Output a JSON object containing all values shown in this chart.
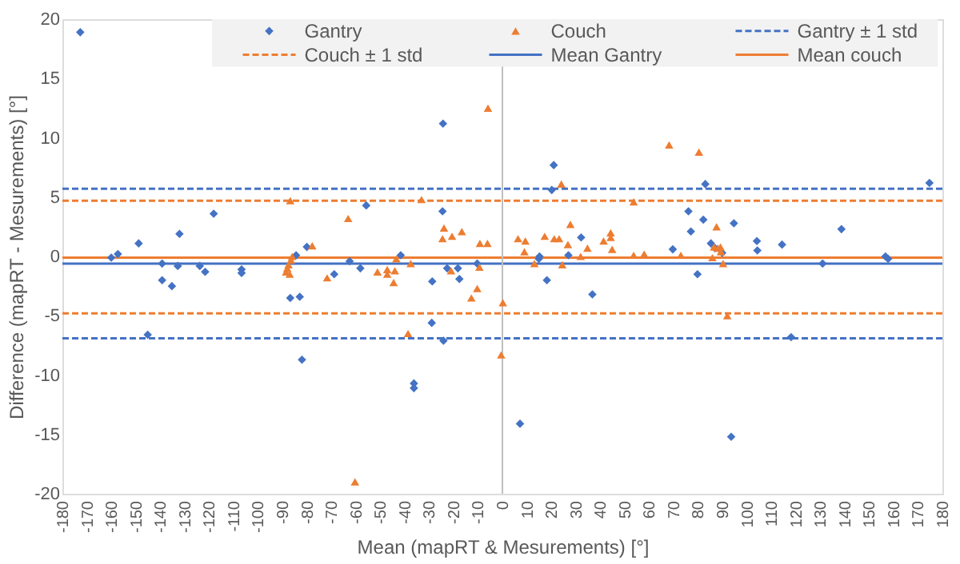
{
  "chart_data": {
    "type": "scatter",
    "xlabel": "Mean (mapRT & Mesurements) [°]",
    "ylabel": "Difference (mapRT - Mesurements) [°]",
    "xlim": [
      -180,
      180
    ],
    "xticks": [
      -180,
      -170,
      -160,
      -150,
      -140,
      -130,
      -120,
      -110,
      -100,
      -90,
      -80,
      -70,
      -60,
      -50,
      -40,
      -30,
      -20,
      -10,
      0,
      10,
      20,
      30,
      40,
      50,
      60,
      70,
      80,
      90,
      100,
      110,
      120,
      130,
      140,
      150,
      160,
      170,
      180
    ],
    "ylim": [
      -20,
      20
    ],
    "yticks": [
      -20,
      -15,
      -10,
      -5,
      0,
      5,
      10,
      15,
      20
    ],
    "grid": false,
    "legend": "top",
    "series": [
      {
        "name": "Gantry",
        "color": "#4472c4",
        "marker": "diamond",
        "x": [
          -172.7,
          -160,
          -157.3,
          -148.8,
          -139.2,
          -139.2,
          -135.2,
          -132.8,
          -132.1,
          -123.8,
          -121.6,
          -118.1,
          -106.7,
          -106.7,
          -145.1,
          -86.8,
          -82.9,
          -82,
          -84.4,
          -80,
          -68.8,
          -62.5,
          -58.1,
          -55.7,
          -41.6,
          -36.2,
          -36.2,
          -28.7,
          -28.9,
          -24.3,
          -24.5,
          -24.1,
          -22.6,
          -18.2,
          -17.6,
          -10.3,
          7.2,
          14.9,
          15.2,
          18.2,
          20.2,
          21,
          27,
          32.2,
          36.8,
          83,
          76.1,
          82.2,
          77.1,
          69.7,
          79.8,
          85.3,
          87,
          89.9,
          94.7,
          104.1,
          104.3,
          114.4,
          118.1,
          131,
          138.7,
          156.7,
          157.8,
          174.7,
          93.6
        ],
        "values": [
          18.9,
          -0.1,
          0.2,
          1.1,
          -0.6,
          -2.0,
          -2.5,
          -0.8,
          1.9,
          -0.8,
          -1.3,
          3.6,
          -1.1,
          -1.4,
          -6.6,
          -3.5,
          -3.4,
          -8.7,
          0.1,
          0.8,
          -1.5,
          -0.4,
          -1.0,
          4.3,
          0.1,
          -10.7,
          -11.1,
          -2.1,
          -5.6,
          11.2,
          3.8,
          -7.1,
          -1.0,
          -1.0,
          -1.9,
          -0.6,
          -14.1,
          -0.2,
          0.0,
          -2.0,
          5.6,
          7.7,
          0.1,
          1.6,
          -3.2,
          6.1,
          3.8,
          3.1,
          2.1,
          0.6,
          -1.5,
          1.1,
          0.7,
          0.3,
          2.8,
          1.3,
          0.5,
          1.0,
          -6.8,
          -0.6,
          2.3,
          0.0,
          -0.2,
          6.2,
          -15.2
        ]
      },
      {
        "name": "Couch",
        "color": "#ed7d31",
        "marker": "triangle",
        "x": [
          -86.8,
          -77.8,
          -88.5,
          -88,
          -87.5,
          -86.5,
          -86,
          -87,
          -71.7,
          -63.1,
          -60.3,
          -51.1,
          -47.1,
          -47.1,
          -44,
          -44.5,
          -43.4,
          -37.5,
          -38.6,
          -33.1,
          -23.9,
          -24.5,
          -20.6,
          -16.6,
          -21,
          -12.7,
          -10.3,
          -9.4,
          -9.2,
          -6.1,
          -5.9,
          0.2,
          -0.5,
          6.4,
          9.4,
          9,
          13.1,
          17.3,
          21.2,
          23.2,
          24.1,
          24.5,
          26.8,
          27.8,
          32,
          34.8,
          41.4,
          44.3,
          44.3,
          44.9,
          53.7,
          53.7,
          58,
          68.2,
          73,
          80.4,
          87.6,
          85.9,
          86.6,
          88.1,
          89.2,
          89.4,
          90.3,
          92
        ],
        "values": [
          4.7,
          0.9,
          -1.3,
          -1.0,
          -0.7,
          -0.3,
          0.0,
          -1.5,
          -1.8,
          3.2,
          -19.0,
          -1.3,
          -1.1,
          -1.5,
          -1.2,
          -2.2,
          -0.2,
          -0.6,
          -6.5,
          4.8,
          2.4,
          1.5,
          1.7,
          2.1,
          -1.2,
          -3.5,
          -2.7,
          -0.9,
          1.1,
          1.1,
          12.5,
          -3.9,
          -8.3,
          1.5,
          1.3,
          0.4,
          -0.6,
          1.7,
          1.5,
          1.5,
          6.1,
          -0.7,
          1.0,
          2.7,
          0.0,
          0.7,
          1.3,
          2.0,
          1.6,
          0.6,
          4.6,
          0.1,
          0.2,
          9.4,
          0.1,
          8.8,
          2.5,
          -0.1,
          0.8,
          0.7,
          0.8,
          0.4,
          -0.6,
          -5.0
        ]
      }
    ],
    "ref_lines": [
      {
        "axis": "y",
        "value": 5.7,
        "label": "Gantry ± 1 std",
        "color": "#4472c4",
        "line_style": "dashed"
      },
      {
        "axis": "y",
        "value": 4.7,
        "label": "Couch ± 1 std",
        "color": "#ed7d31",
        "line_style": "dashed"
      },
      {
        "axis": "y",
        "value": -0.6,
        "label": "Mean Gantry",
        "color": "#4472c4",
        "line_style": "solid"
      },
      {
        "axis": "y",
        "value": -0.1,
        "label": "Mean couch",
        "color": "#ed7d31",
        "line_style": "solid"
      },
      {
        "axis": "y",
        "value": -6.9,
        "label": null,
        "color": "#4472c4",
        "line_style": "dashed"
      },
      {
        "axis": "y",
        "value": -4.8,
        "label": null,
        "color": "#ed7d31",
        "line_style": "dashed"
      },
      {
        "axis": "x",
        "value": 0,
        "label": null,
        "color": "#bfbfbf",
        "line_style": "solid"
      }
    ]
  }
}
